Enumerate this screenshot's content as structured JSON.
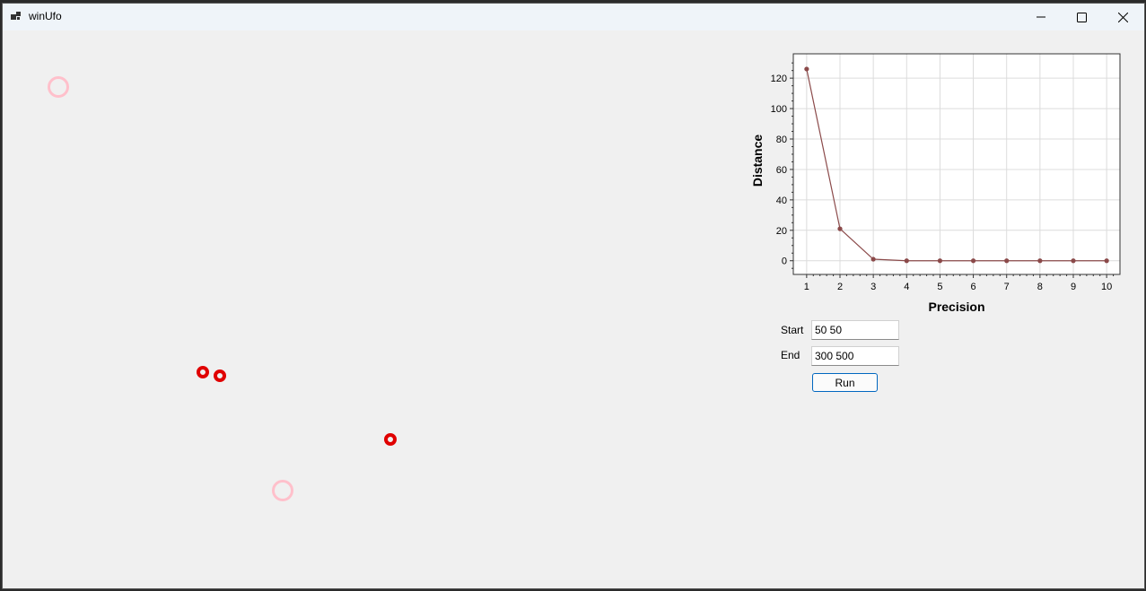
{
  "window": {
    "title": "winUfo",
    "controls": {
      "minimize": "minimize-icon",
      "maximize": "maximize-icon",
      "close": "close-icon"
    }
  },
  "form": {
    "start_label": "Start",
    "start_value": "50 50",
    "end_label": "End",
    "end_value": "300 500",
    "run_label": "Run"
  },
  "colors": {
    "accent": "#0067c0",
    "series": "#8b4a4a",
    "pink_marker": "#ffc0cb",
    "red_marker": "#e00000"
  },
  "chart_data": {
    "type": "line",
    "xlabel": "Precision",
    "ylabel": "Distance",
    "x": [
      1,
      2,
      3,
      4,
      5,
      6,
      7,
      8,
      9,
      10
    ],
    "series": [
      {
        "values": [
          126,
          21,
          1,
          0,
          0,
          0,
          0,
          0,
          0,
          0
        ]
      }
    ],
    "xlim": [
      0.6,
      10.4
    ],
    "ylim": [
      -9,
      136
    ],
    "yticks": [
      0,
      20,
      40,
      60,
      80,
      100,
      120
    ],
    "xticks": [
      1,
      2,
      3,
      4,
      5,
      6,
      7,
      8,
      9,
      10
    ],
    "grid": true
  }
}
